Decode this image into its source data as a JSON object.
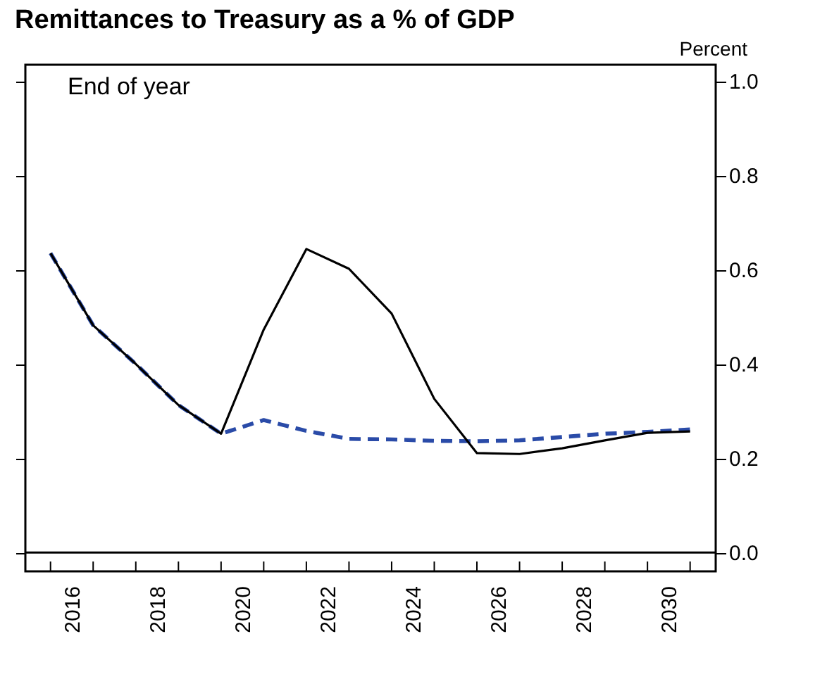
{
  "chart_data": {
    "type": "line",
    "title": "Remittances to Treasury as a % of GDP",
    "ylabel": "Percent",
    "annotations": [
      "End of year"
    ],
    "x": [
      2016,
      2017,
      2018,
      2019,
      2020,
      2021,
      2022,
      2023,
      2024,
      2025,
      2026,
      2027,
      2028,
      2029,
      2030,
      2031
    ],
    "series": [
      {
        "color": "#000000",
        "line_style": "solid",
        "values": [
          0.635,
          0.482,
          0.4,
          0.313,
          0.252,
          0.473,
          0.644,
          0.602,
          0.507,
          0.326,
          0.211,
          0.209,
          0.221,
          0.238,
          0.254,
          0.257
        ]
      },
      {
        "color": "#2a4ba8",
        "line_style": "dashed",
        "values": [
          0.635,
          0.482,
          0.4,
          0.313,
          0.252,
          0.281,
          0.258,
          0.241,
          0.24,
          0.237,
          0.236,
          0.238,
          0.245,
          0.252,
          0.256,
          0.261
        ]
      }
    ],
    "xlim": [
      2015.41,
      2031.6
    ],
    "xticks": [
      {
        "value": 2016,
        "label": null
      },
      {
        "value": 2016.5,
        "label": "2016"
      },
      {
        "value": 2017,
        "label": null
      },
      {
        "value": 2018,
        "label": null
      },
      {
        "value": 2018.5,
        "label": "2018"
      },
      {
        "value": 2019,
        "label": null
      },
      {
        "value": 2020,
        "label": null
      },
      {
        "value": 2020.5,
        "label": "2020"
      },
      {
        "value": 2021,
        "label": null
      },
      {
        "value": 2022,
        "label": null
      },
      {
        "value": 2022.5,
        "label": "2022"
      },
      {
        "value": 2023,
        "label": null
      },
      {
        "value": 2024,
        "label": null
      },
      {
        "value": 2024.5,
        "label": "2024"
      },
      {
        "value": 2025,
        "label": null
      },
      {
        "value": 2026,
        "label": null
      },
      {
        "value": 2026.5,
        "label": "2026"
      },
      {
        "value": 2027,
        "label": null
      },
      {
        "value": 2028,
        "label": null
      },
      {
        "value": 2028.5,
        "label": "2028"
      },
      {
        "value": 2029,
        "label": null
      },
      {
        "value": 2030,
        "label": null
      },
      {
        "value": 2030.5,
        "label": "2030"
      },
      {
        "value": 2031,
        "label": null
      }
    ],
    "ylim": [
      -0.04,
      1.035
    ],
    "yticks": [
      {
        "value": 0,
        "label": "0.0"
      },
      0.2,
      0.4,
      0.6,
      0.8,
      {
        "value": 1,
        "label": "1.0"
      }
    ],
    "ref_lines": [
      {
        "axis": "y",
        "value": 0,
        "color": "#000000"
      }
    ],
    "grid": false
  }
}
